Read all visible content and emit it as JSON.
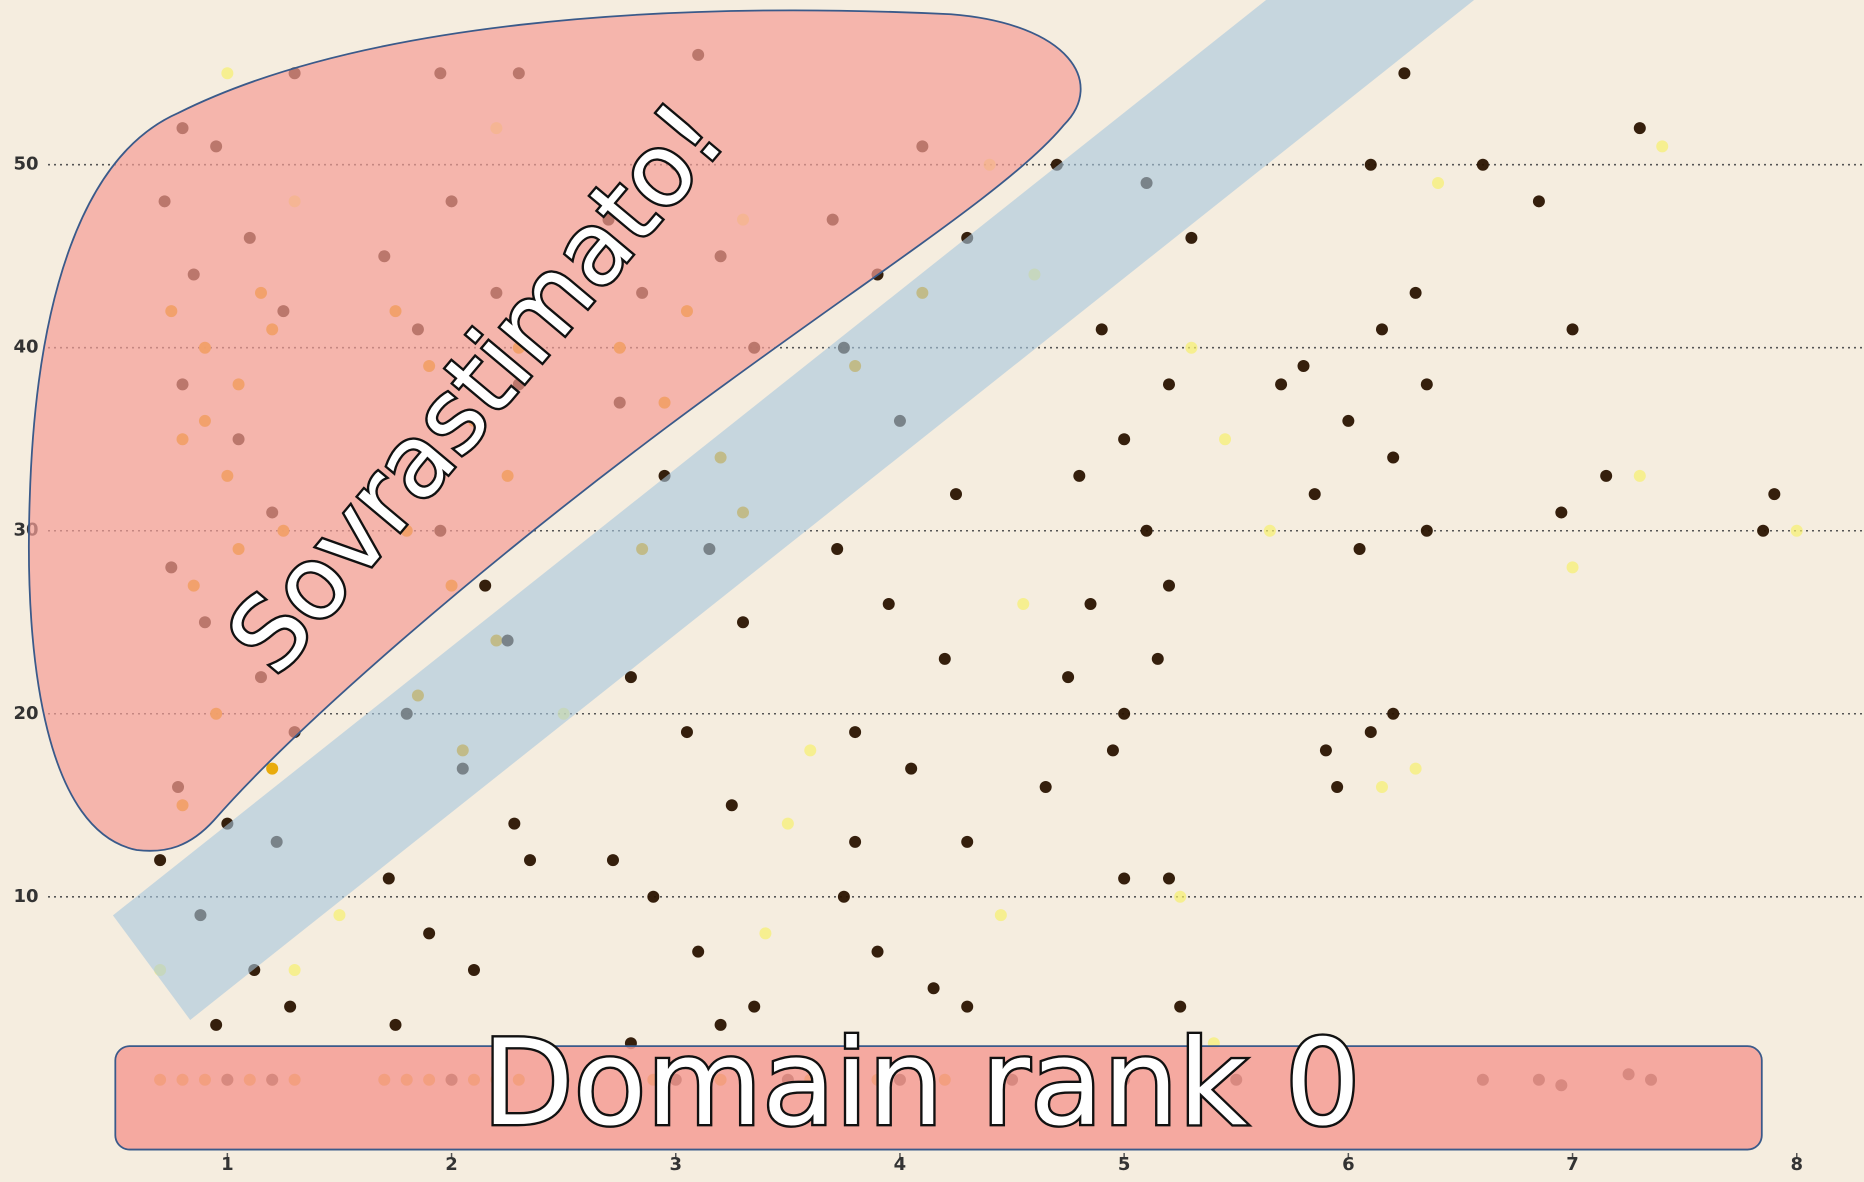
{
  "chart_data": {
    "type": "scatter",
    "annotations": [
      "Sovrastimato!",
      "Domain rank 0"
    ],
    "xlim": [
      0.2,
      8.3
    ],
    "ylim": [
      -4,
      59
    ],
    "xticks": [
      1,
      2,
      3,
      4,
      5,
      6,
      7,
      8
    ],
    "yticks": [
      10,
      20,
      30,
      40,
      50
    ],
    "grid": true,
    "series": [
      {
        "color": "#f7ef6e",
        "x": [
          1.0,
          1.3,
          2.2,
          3.3,
          3.6,
          3.4,
          4.4,
          4.45,
          4.6,
          5.3,
          5.25,
          5.65,
          5.45,
          6.3,
          6.4,
          6.15,
          7.3,
          7.4,
          7.0,
          8.0,
          1.5,
          2.5,
          3.5,
          4.55,
          5.4,
          0.7,
          1.3
        ],
        "y": [
          55,
          48,
          52,
          47,
          18,
          8,
          50,
          9,
          44,
          40,
          10,
          30,
          35,
          17,
          49,
          16,
          33,
          51,
          28,
          30,
          9,
          20,
          14,
          26,
          2,
          6,
          6
        ]
      },
      {
        "color": "#e8a800",
        "x": [
          0.75,
          0.9,
          1.05,
          1.2,
          0.8,
          1.0,
          1.25,
          0.85,
          1.1,
          0.95,
          1.2,
          0.8,
          1.05,
          0.9,
          1.15,
          1.75,
          1.9,
          2.1,
          2.25,
          1.8,
          2.0,
          2.2,
          1.85,
          2.05,
          2.3,
          2.75,
          2.95,
          3.2,
          3.05,
          2.85,
          3.3,
          3.8,
          4.1,
          0.7,
          0.8,
          0.9,
          1.0,
          1.1,
          1.2,
          1.3,
          1.7,
          1.8,
          1.9,
          2.0,
          2.1,
          2.2,
          2.3,
          2.6,
          2.9,
          3.2,
          3.6,
          3.9,
          4.2
        ],
        "y": [
          42,
          40,
          38,
          41,
          35,
          33,
          30,
          27,
          24,
          20,
          17,
          15,
          29,
          36,
          43,
          42,
          39,
          36,
          33,
          30,
          27,
          24,
          21,
          18,
          40,
          40,
          37,
          34,
          42,
          29,
          31,
          39,
          43,
          0,
          0,
          0,
          0,
          0,
          0,
          0,
          0,
          0,
          0,
          0,
          0,
          0,
          0,
          0,
          0,
          0,
          0,
          0,
          0
        ]
      },
      {
        "color": "#2a1400",
        "x": [
          0.72,
          0.85,
          0.95,
          1.1,
          1.25,
          0.8,
          1.05,
          1.2,
          0.75,
          0.9,
          1.15,
          1.3,
          0.78,
          1.0,
          1.22,
          0.7,
          0.88,
          1.12,
          1.28,
          0.95,
          1.3,
          0.8,
          1.7,
          1.85,
          2.0,
          2.2,
          2.3,
          1.75,
          1.95,
          2.15,
          2.25,
          1.8,
          2.05,
          2.28,
          1.72,
          1.9,
          2.1,
          2.35,
          1.95,
          2.3,
          1.75,
          2.7,
          2.85,
          3.0,
          3.2,
          3.35,
          2.75,
          2.95,
          3.15,
          3.3,
          2.8,
          3.05,
          3.25,
          2.72,
          2.9,
          3.1,
          3.35,
          3.2,
          3.1,
          2.8,
          3.7,
          3.9,
          4.1,
          4.3,
          3.75,
          4.0,
          4.25,
          3.72,
          3.95,
          4.2,
          3.8,
          4.05,
          4.3,
          3.75,
          3.9,
          4.15,
          4.3,
          3.8,
          4.7,
          5.1,
          4.9,
          5.2,
          5.0,
          4.8,
          5.1,
          4.85,
          5.15,
          4.75,
          4.95,
          5.0,
          5.2,
          4.65,
          5.3,
          5.2,
          5.25,
          5.0,
          6.1,
          6.25,
          6.3,
          6.15,
          5.7,
          6.0,
          6.2,
          5.85,
          6.05,
          6.35,
          5.9,
          6.2,
          6.1,
          5.95,
          5.8,
          6.35,
          6.6,
          6.85,
          7.0,
          7.15,
          6.95,
          7.3,
          7.85,
          7.9,
          1.0,
          1.2,
          2.0,
          2.5,
          3.0,
          3.5,
          4.0,
          4.5,
          5.0,
          5.5,
          6.0,
          6.6,
          6.85,
          6.95,
          7.25,
          7.35
        ],
        "y": [
          48,
          44,
          51,
          46,
          42,
          38,
          35,
          31,
          28,
          25,
          22,
          19,
          16,
          14,
          13,
          12,
          9,
          6,
          4,
          3,
          55,
          52,
          45,
          41,
          48,
          43,
          38,
          34,
          30,
          27,
          24,
          20,
          17,
          14,
          11,
          8,
          6,
          12,
          55,
          55,
          3,
          47,
          43,
          50,
          45,
          40,
          37,
          33,
          29,
          25,
          22,
          19,
          15,
          12,
          10,
          7,
          4,
          3,
          56,
          2,
          47,
          44,
          51,
          46,
          40,
          36,
          32,
          29,
          26,
          23,
          19,
          17,
          13,
          10,
          7,
          5,
          4,
          13,
          50,
          49,
          41,
          38,
          35,
          33,
          30,
          26,
          23,
          22,
          18,
          11,
          11,
          16,
          46,
          27,
          4,
          20,
          50,
          55,
          43,
          41,
          38,
          36,
          34,
          32,
          29,
          30,
          18,
          20,
          19,
          16,
          39,
          38,
          50,
          48,
          41,
          33,
          31,
          52,
          30,
          32,
          0,
          0,
          0,
          0,
          0,
          0,
          0,
          0,
          0,
          0,
          0,
          0,
          0,
          -0.3,
          0.3,
          0
        ]
      }
    ]
  }
}
